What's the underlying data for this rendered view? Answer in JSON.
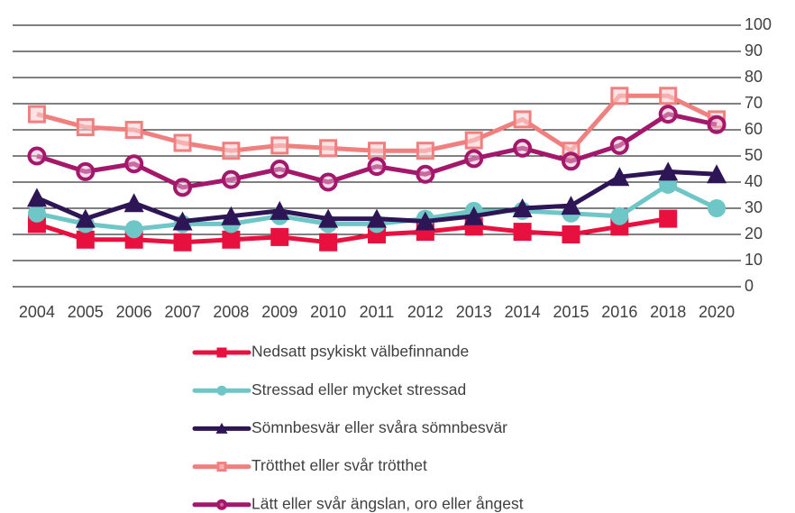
{
  "chart_data": {
    "type": "line",
    "categories": [
      "2004",
      "2005",
      "2006",
      "2007",
      "2008",
      "2009",
      "2010",
      "2011",
      "2012",
      "2013",
      "2014",
      "2015",
      "2016",
      "2018",
      "2020"
    ],
    "ylim": [
      0,
      100
    ],
    "yticks": [
      0,
      10,
      20,
      30,
      40,
      50,
      60,
      70,
      80,
      90,
      100
    ],
    "grid": true,
    "y_axis_side": "right",
    "legend": "bottom",
    "series": [
      {
        "name": "Nedsatt psykiskt välbefinnande",
        "color": "#e8103f",
        "marker": "square",
        "values": [
          24,
          18,
          18,
          17,
          18,
          19,
          17,
          20,
          21,
          23,
          21,
          20,
          23,
          26,
          null
        ]
      },
      {
        "name": "Stressad eller mycket stressad",
        "color": "#6ec6c6",
        "marker": "circle",
        "values": [
          28,
          24,
          22,
          24,
          24,
          27,
          24,
          24,
          26,
          29,
          29,
          28,
          27,
          39,
          30
        ]
      },
      {
        "name": "Sömnbesvär eller svåra sömnbesvär",
        "color": "#2e1656",
        "marker": "triangle",
        "values": [
          34,
          26,
          32,
          25,
          27,
          29,
          26,
          26,
          25,
          27,
          30,
          31,
          42,
          44,
          43
        ]
      },
      {
        "name": "Trötthet eller svår trötthet",
        "color": "#f08080",
        "marker": "hollow-square",
        "values": [
          66,
          61,
          60,
          55,
          52,
          54,
          53,
          52,
          52,
          56,
          64,
          52,
          73,
          73,
          64
        ]
      },
      {
        "name": "Lätt eller svår ängslan, oro eller ångest",
        "color": "#a3186b",
        "marker": "hollow-circle",
        "values": [
          50,
          44,
          47,
          38,
          41,
          45,
          40,
          46,
          43,
          49,
          53,
          48,
          54,
          66,
          62
        ]
      }
    ]
  }
}
